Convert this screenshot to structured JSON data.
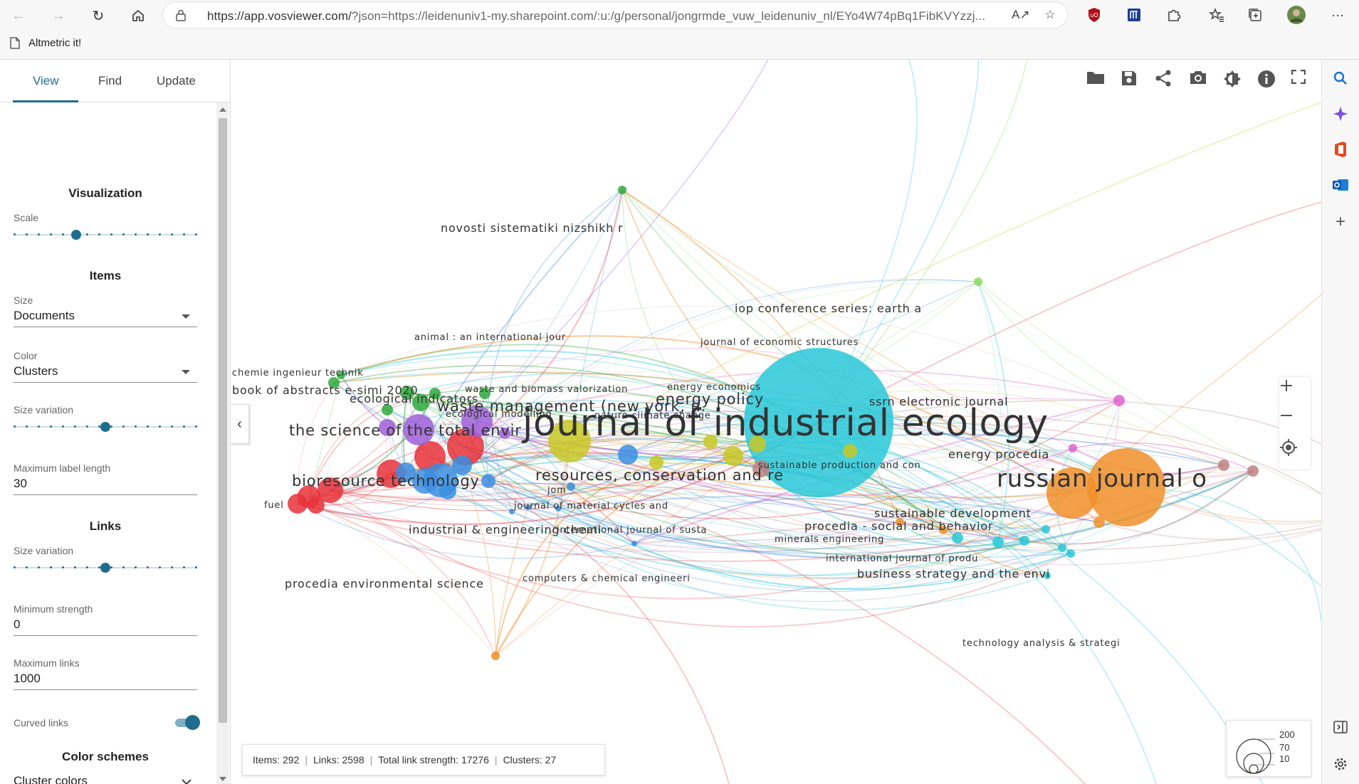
{
  "browser": {
    "url_main": "https://app.vosviewer.com/",
    "url_rest": "?json=https://leidenuniv1-my.sharepoint.com/:u:/g/personal/jongrmde_vuw_leidenuniv_nl/EYo4W74pBq1FibKVYzzj...",
    "favorite": "Altmetric it!",
    "icons": [
      "back-icon",
      "forward-icon",
      "refresh-icon",
      "home-icon",
      "lock-icon",
      "read-aloud-icon",
      "favorite-star-icon",
      "ublock-icon",
      "extension-icon",
      "puzzle-icon",
      "favorites-icon",
      "collections-icon",
      "profile-avatar",
      "more-icon"
    ]
  },
  "panel": {
    "tabs": [
      "View",
      "Find",
      "Update"
    ],
    "visualization": {
      "title": "Visualization",
      "scale_label": "Scale",
      "scale_level": 0.33
    },
    "items": {
      "title": "Items",
      "size_label": "Size",
      "size_value": "Documents",
      "color_label": "Color",
      "color_value": "Clusters",
      "size_variation_label": "Size variation",
      "size_variation_level": 0.5,
      "max_label_length_label": "Maximum label length",
      "max_label_length_value": "30"
    },
    "links": {
      "title": "Links",
      "size_variation_label": "Size variation",
      "size_variation_level": 0.5,
      "min_strength_label": "Minimum strength",
      "min_strength_value": "0",
      "max_links_label": "Maximum links",
      "max_links_value": "1000",
      "curved_links_label": "Curved links",
      "curved_links_on": true
    },
    "color_schemes": {
      "title": "Color schemes",
      "cluster_colors_label": "Cluster colors"
    }
  },
  "status": {
    "items": "Items: 292",
    "links": "Links: 2598",
    "strength": "Total link strength: 17276",
    "clusters": "Clusters: 27"
  },
  "legend": {
    "values": [
      "200",
      "70",
      "10"
    ]
  },
  "colors": {
    "accent": "#1e6d8f",
    "clusters": [
      "#e8333a",
      "#3b8ee0",
      "#a05fd8",
      "#c8c825",
      "#2eaa3c",
      "#29c8d8",
      "#f0902a",
      "#c08080",
      "#e060d0",
      "#88d860"
    ]
  },
  "map_labels": [
    {
      "text": "journal of industrial ecology",
      "size": "xl"
    },
    {
      "text": "russian journal o",
      "size": "l"
    },
    {
      "text": "the science of the total envir",
      "size": "m"
    },
    {
      "text": "bioresource technology",
      "size": "m"
    },
    {
      "text": "resources, conservation and re",
      "size": "m"
    },
    {
      "text": "waste management (new york, n.",
      "size": "m"
    },
    {
      "text": "energy policy",
      "size": "m"
    },
    {
      "text": "ecological indicators",
      "size": "s"
    },
    {
      "text": "book of abstracts e-simi 2020",
      "size": "s"
    },
    {
      "text": "chemie ingenieur technik",
      "size": "xs"
    },
    {
      "text": "novosti sistematiki nizshikh r",
      "size": "s"
    },
    {
      "text": "iop conference series: earth a",
      "size": "s"
    },
    {
      "text": "journal of economic structures",
      "size": "xs"
    },
    {
      "text": "animal : an international jour",
      "size": "xs"
    },
    {
      "text": "waste and biomass valorization",
      "size": "xs"
    },
    {
      "text": "ecological modelling",
      "size": "xs"
    },
    {
      "text": "energy economics",
      "size": "xs"
    },
    {
      "text": "nature climate change",
      "size": "xs"
    },
    {
      "text": "ssrn electronic journal",
      "size": "s"
    },
    {
      "text": "energy procedia",
      "size": "s"
    },
    {
      "text": "sustainable production and con",
      "size": "xs"
    },
    {
      "text": "sustainable development",
      "size": "s"
    },
    {
      "text": "procedia - social and behavior",
      "size": "s"
    },
    {
      "text": "minerals engineering",
      "size": "xs"
    },
    {
      "text": "international journal of produ",
      "size": "xs"
    },
    {
      "text": "business strategy and the envi",
      "size": "s"
    },
    {
      "text": "jom",
      "size": "xs"
    },
    {
      "text": "journal of material cycles and",
      "size": "xs"
    },
    {
      "text": "industrial & engineering chemi",
      "size": "s"
    },
    {
      "text": "international journal of susta",
      "size": "xs"
    },
    {
      "text": "computers & chemical engineeri",
      "size": "xs"
    },
    {
      "text": "procedia environmental science",
      "size": "s"
    },
    {
      "text": "fuel",
      "size": "xs"
    },
    {
      "text": "technology analysis & strategi",
      "size": "xs"
    }
  ]
}
